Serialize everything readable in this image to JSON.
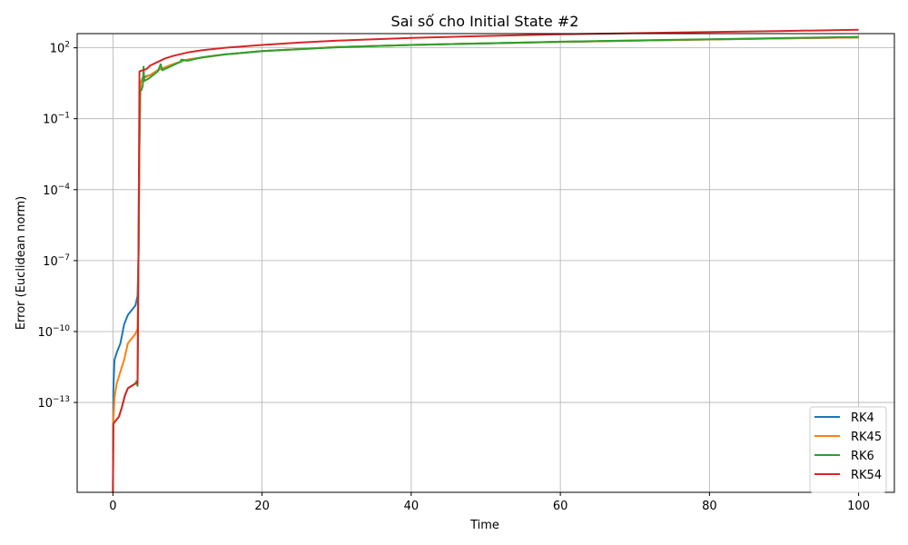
{
  "chart_data": {
    "type": "line",
    "title": "Sai số cho Initial State #2",
    "xlabel": "Time",
    "ylabel": "Error (Euclidean norm)",
    "xlim": [
      -4.8,
      104.8
    ],
    "ylim_log10": [
      -16.8,
      2.6
    ],
    "yscale": "log",
    "grid": true,
    "legend_position": "lower-right",
    "x_ticks": [
      0,
      20,
      40,
      60,
      80,
      100
    ],
    "x_tick_labels": [
      "0",
      "20",
      "40",
      "60",
      "80",
      "100"
    ],
    "y_ticks_log10": [
      -13,
      -10,
      -7,
      -4,
      -1,
      2
    ],
    "y_tick_labels": [
      {
        "base": "10",
        "exp": "−13"
      },
      {
        "base": "10",
        "exp": "−10"
      },
      {
        "base": "10",
        "exp": "−7"
      },
      {
        "base": "10",
        "exp": "−4"
      },
      {
        "base": "10",
        "exp": "−1"
      },
      {
        "base": "10",
        "exp": "2"
      }
    ],
    "series": [
      {
        "name": "RK4",
        "color": "#1f77b4",
        "points_log10": [
          [
            0,
            -16.8
          ],
          [
            0.05,
            -12.5
          ],
          [
            0.2,
            -11.2
          ],
          [
            0.5,
            -10.9
          ],
          [
            1.0,
            -10.5
          ],
          [
            1.5,
            -9.7
          ],
          [
            2.0,
            -9.3
          ],
          [
            3.0,
            -8.9
          ],
          [
            3.3,
            -8.5
          ],
          [
            3.45,
            -6.5
          ],
          [
            3.55,
            -2
          ],
          [
            3.7,
            0.5
          ],
          [
            4.0,
            0.75
          ],
          [
            5.0,
            0.85
          ],
          [
            6.0,
            1.05
          ],
          [
            8.0,
            1.3
          ],
          [
            10,
            1.5
          ],
          [
            15,
            1.72
          ],
          [
            20,
            1.86
          ],
          [
            30,
            2.03
          ],
          [
            40,
            2.12
          ],
          [
            50,
            2.19
          ],
          [
            60,
            2.25
          ],
          [
            70,
            2.3
          ],
          [
            80,
            2.35
          ],
          [
            90,
            2.4
          ],
          [
            100,
            2.44
          ]
        ]
      },
      {
        "name": "RK45",
        "color": "#ff7f0e",
        "points_log10": [
          [
            0,
            -16.8
          ],
          [
            0.05,
            -13.8
          ],
          [
            0.2,
            -12.8
          ],
          [
            0.5,
            -12.2
          ],
          [
            1.0,
            -11.7
          ],
          [
            1.5,
            -11.2
          ],
          [
            2.0,
            -10.5
          ],
          [
            3.0,
            -10.1
          ],
          [
            3.3,
            -9.9
          ],
          [
            3.45,
            -6.5
          ],
          [
            3.55,
            -2
          ],
          [
            3.7,
            0.5
          ],
          [
            4.0,
            0.7
          ],
          [
            5.0,
            0.85
          ],
          [
            6.0,
            1.05
          ],
          [
            8.0,
            1.3
          ],
          [
            10,
            1.5
          ],
          [
            15,
            1.72
          ],
          [
            20,
            1.86
          ],
          [
            30,
            2.03
          ],
          [
            40,
            2.12
          ],
          [
            50,
            2.19
          ],
          [
            60,
            2.25
          ],
          [
            70,
            2.3
          ],
          [
            80,
            2.35
          ],
          [
            90,
            2.4
          ],
          [
            100,
            2.44
          ]
        ]
      },
      {
        "name": "RK6",
        "color": "#2ca02c",
        "points_log10": [
          [
            0,
            -16.8
          ],
          [
            0.05,
            -13.9
          ],
          [
            0.3,
            -13.8
          ],
          [
            0.8,
            -13.6
          ],
          [
            1.2,
            -13.2
          ],
          [
            1.6,
            -12.7
          ],
          [
            2.0,
            -12.4
          ],
          [
            2.5,
            -12.3
          ],
          [
            3.0,
            -12.2
          ],
          [
            3.15,
            -12.1
          ],
          [
            3.3,
            -12.3
          ],
          [
            3.4,
            -8
          ],
          [
            3.5,
            -3
          ],
          [
            3.6,
            0.2
          ],
          [
            3.8,
            0.2
          ],
          [
            4.0,
            0.4
          ],
          [
            4.1,
            1.2
          ],
          [
            4.2,
            0.6
          ],
          [
            4.8,
            0.7
          ],
          [
            6.0,
            1.0
          ],
          [
            6.4,
            1.3
          ],
          [
            6.6,
            1.05
          ],
          [
            8.0,
            1.25
          ],
          [
            9.0,
            1.4
          ],
          [
            9.2,
            1.5
          ],
          [
            10,
            1.45
          ],
          [
            12,
            1.6
          ],
          [
            15,
            1.72
          ],
          [
            20,
            1.86
          ],
          [
            30,
            2.02
          ],
          [
            40,
            2.12
          ],
          [
            50,
            2.19
          ],
          [
            60,
            2.26
          ],
          [
            70,
            2.31
          ],
          [
            80,
            2.36
          ],
          [
            90,
            2.41
          ],
          [
            100,
            2.46
          ]
        ]
      },
      {
        "name": "RK54",
        "color": "#d62728",
        "points_log10": [
          [
            0,
            -16.8
          ],
          [
            0.05,
            -13.9
          ],
          [
            0.3,
            -13.8
          ],
          [
            0.8,
            -13.6
          ],
          [
            1.2,
            -13.2
          ],
          [
            1.6,
            -12.7
          ],
          [
            2.0,
            -12.4
          ],
          [
            2.5,
            -12.3
          ],
          [
            3.0,
            -12.2
          ],
          [
            3.3,
            -12.2
          ],
          [
            3.4,
            -8
          ],
          [
            3.5,
            -2
          ],
          [
            3.55,
            1.0
          ],
          [
            4.0,
            1.05
          ],
          [
            4.5,
            1.1
          ],
          [
            5,
            1.25
          ],
          [
            6,
            1.4
          ],
          [
            7,
            1.55
          ],
          [
            8,
            1.65
          ],
          [
            10,
            1.8
          ],
          [
            12,
            1.9
          ],
          [
            15,
            2.0
          ],
          [
            20,
            2.12
          ],
          [
            25,
            2.22
          ],
          [
            30,
            2.3
          ],
          [
            40,
            2.42
          ],
          [
            50,
            2.5
          ],
          [
            60,
            2.57
          ],
          [
            70,
            2.62
          ],
          [
            80,
            2.67
          ],
          [
            90,
            2.71
          ],
          [
            100,
            2.76
          ]
        ]
      }
    ]
  }
}
